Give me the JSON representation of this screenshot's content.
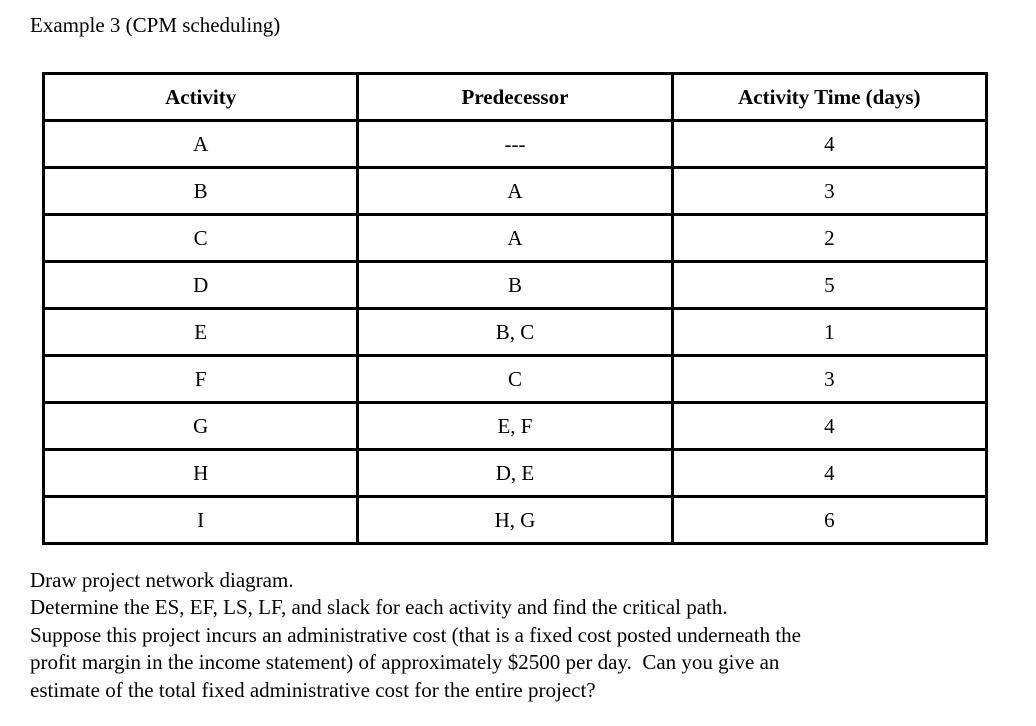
{
  "page": {
    "title": "Example 3 (CPM scheduling)"
  },
  "table": {
    "headers": [
      "Activity",
      "Predecessor",
      "Activity Time (days)"
    ],
    "rows": [
      {
        "activity": "A",
        "predecessor": "---",
        "time": "4"
      },
      {
        "activity": "B",
        "predecessor": "A",
        "time": "3"
      },
      {
        "activity": "C",
        "predecessor": "A",
        "time": "2"
      },
      {
        "activity": "D",
        "predecessor": "B",
        "time": "5"
      },
      {
        "activity": "E",
        "predecessor": "B, C",
        "time": "1"
      },
      {
        "activity": "F",
        "predecessor": "C",
        "time": "3"
      },
      {
        "activity": "G",
        "predecessor": "E, F",
        "time": "4"
      },
      {
        "activity": "H",
        "predecessor": "D, E",
        "time": "4"
      },
      {
        "activity": "I",
        "predecessor": "H, G",
        "time": "6"
      }
    ]
  },
  "questions": {
    "lines": [
      "Draw project network diagram.",
      "Determine the ES, EF, LS, LF, and slack for each activity and find the critical path.",
      "Suppose this project incurs an administrative cost (that is a fixed cost posted underneath the",
      "profit margin in the income statement) of approximately $2500 per day.  Can you give an",
      "estimate of the total fixed administrative cost for the entire project?"
    ]
  },
  "colors": {
    "background": "#ffffff",
    "text": "#000000",
    "table_border": "#000000"
  }
}
